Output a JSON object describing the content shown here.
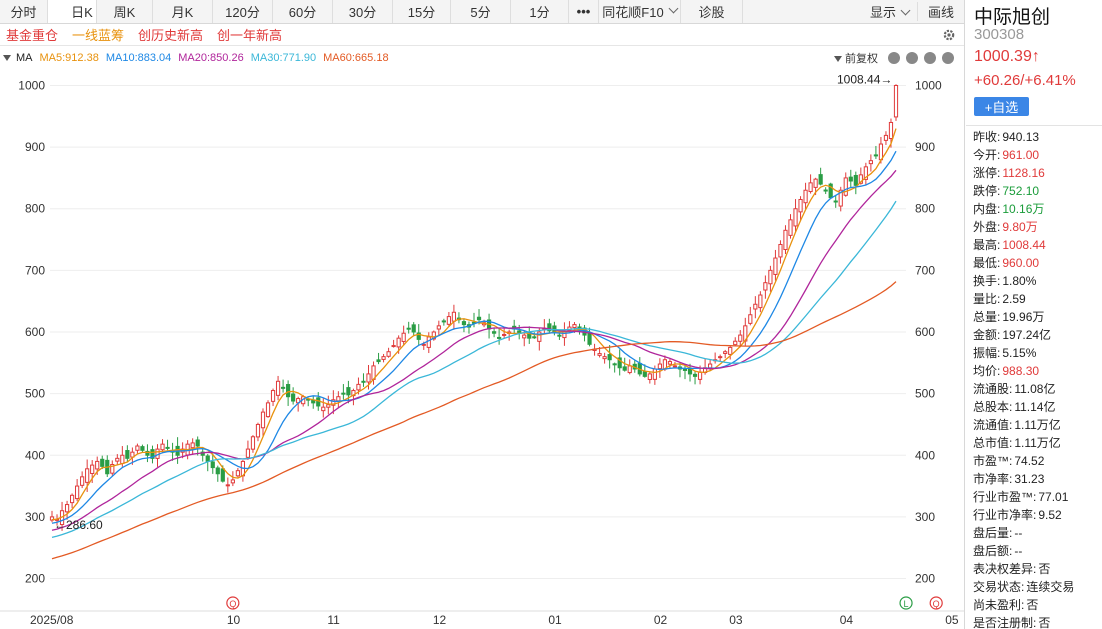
{
  "toolbar": {
    "tabs": [
      "分时",
      "日K",
      "周K",
      "月K",
      "120分",
      "60分",
      "30分",
      "15分",
      "5分",
      "1分",
      "•••",
      "同花顺F10",
      "诊股"
    ],
    "active_tab": "日K",
    "display_label": "显示",
    "draw_label": "画线"
  },
  "tags": [
    "基金重仓",
    "一线蓝筹",
    "创历史新高",
    "创一年新高"
  ],
  "ma_bar": {
    "label": "MA",
    "items": [
      {
        "text": "MA5:912.38",
        "color": "#e8920e"
      },
      {
        "text": "MA10:883.04",
        "color": "#1e88e5"
      },
      {
        "text": "MA20:850.26",
        "color": "#b0259b"
      },
      {
        "text": "MA30:771.90",
        "color": "#3ab7d8"
      },
      {
        "text": "MA60:665.18",
        "color": "#e35a24"
      }
    ],
    "adjust_label": "前复权"
  },
  "stock": {
    "name": "中际旭创",
    "code": "300308",
    "price": "1000.39↑",
    "change": "+60.26/+6.41%",
    "add_label": "+自选"
  },
  "stats": [
    {
      "k": "昨收:",
      "v": "940.13",
      "c": ""
    },
    {
      "k": "今开:",
      "v": "961.00",
      "c": "red"
    },
    {
      "k": "涨停:",
      "v": "1128.16",
      "c": "red"
    },
    {
      "k": "跌停:",
      "v": "752.10",
      "c": "green"
    },
    {
      "k": "内盘:",
      "v": "10.16万",
      "c": "green"
    },
    {
      "k": "外盘:",
      "v": "9.80万",
      "c": "red"
    },
    {
      "k": "最高:",
      "v": "1008.44",
      "c": "red"
    },
    {
      "k": "最低:",
      "v": "960.00",
      "c": "red"
    },
    {
      "k": "换手:",
      "v": "1.80%",
      "c": ""
    },
    {
      "k": "量比:",
      "v": "2.59",
      "c": ""
    },
    {
      "k": "总量:",
      "v": "19.96万",
      "c": ""
    },
    {
      "k": "金额:",
      "v": "197.24亿",
      "c": ""
    },
    {
      "k": "振幅:",
      "v": "5.15%",
      "c": ""
    },
    {
      "k": "均价:",
      "v": "988.30",
      "c": "red"
    },
    {
      "k": "流通股:",
      "v": "11.08亿",
      "c": ""
    },
    {
      "k": "总股本:",
      "v": "11.14亿",
      "c": ""
    },
    {
      "k": "流通值:",
      "v": "1.11万亿",
      "c": ""
    },
    {
      "k": "总市值:",
      "v": "1.11万亿",
      "c": ""
    },
    {
      "k": "市盈™:",
      "v": "74.52",
      "c": ""
    },
    {
      "k": "市净率:",
      "v": "31.23",
      "c": ""
    },
    {
      "k": "行业市盈™:",
      "v": "77.01",
      "c": ""
    },
    {
      "k": "行业市净率:",
      "v": "9.52",
      "c": ""
    },
    {
      "k": "盘后量:",
      "v": "--",
      "c": ""
    },
    {
      "k": "盘后额:",
      "v": "--",
      "c": ""
    },
    {
      "k": "表决权差异:",
      "v": "否",
      "c": ""
    },
    {
      "k": "交易状态:",
      "v": "连续交易",
      "c": ""
    },
    {
      "k": "尚未盈利:",
      "v": "否",
      "c": ""
    },
    {
      "k": "是否注册制:",
      "v": "否",
      "c": ""
    }
  ],
  "chart_data": {
    "type": "candlestick",
    "y_ticks": [
      200,
      300,
      400,
      500,
      600,
      700,
      800,
      900,
      1000
    ],
    "ylim": [
      170,
      1030
    ],
    "x_labels": [
      "2025/08",
      "10",
      "11",
      "12",
      "01",
      "02",
      "03",
      "04",
      "05"
    ],
    "x_label_index": [
      0,
      36,
      56,
      77,
      100,
      121,
      136,
      158,
      179
    ],
    "high_label": "1008.44→",
    "low_label": "←286.60",
    "markers": [
      {
        "text": "Q",
        "index": 36
      },
      {
        "text": "L",
        "index": 170
      },
      {
        "text": "Q",
        "index": 176
      }
    ],
    "closes": [
      300,
      296,
      310,
      320,
      335,
      350,
      365,
      378,
      384,
      390,
      382,
      370,
      385,
      395,
      400,
      395,
      405,
      415,
      408,
      400,
      395,
      410,
      418,
      412,
      405,
      400,
      410,
      418,
      420,
      415,
      400,
      390,
      380,
      370,
      358,
      352,
      360,
      375,
      390,
      410,
      430,
      450,
      470,
      485,
      505,
      520,
      510,
      495,
      488,
      492,
      495,
      490,
      485,
      480,
      478,
      482,
      490,
      495,
      500,
      498,
      505,
      515,
      520,
      532,
      545,
      552,
      560,
      568,
      578,
      590,
      598,
      605,
      600,
      588,
      580,
      592,
      600,
      610,
      618,
      625,
      632,
      620,
      612,
      608,
      615,
      620,
      615,
      605,
      598,
      590,
      596,
      600,
      605,
      598,
      595,
      590,
      592,
      600,
      606,
      602,
      600,
      594,
      600,
      608,
      612,
      605,
      595,
      580,
      572,
      565,
      560,
      555,
      548,
      542,
      538,
      545,
      540,
      532,
      528,
      532,
      540,
      548,
      555,
      552,
      545,
      540,
      538,
      532,
      528,
      535,
      542,
      548,
      555,
      560,
      568,
      575,
      585,
      595,
      610,
      628,
      645,
      660,
      680,
      700,
      720,
      742,
      765,
      782,
      800,
      815,
      830,
      842,
      848,
      840,
      830,
      818,
      812,
      830,
      850,
      845,
      838,
      855,
      868,
      878,
      886,
      905,
      919,
      940,
      1000
    ]
  }
}
